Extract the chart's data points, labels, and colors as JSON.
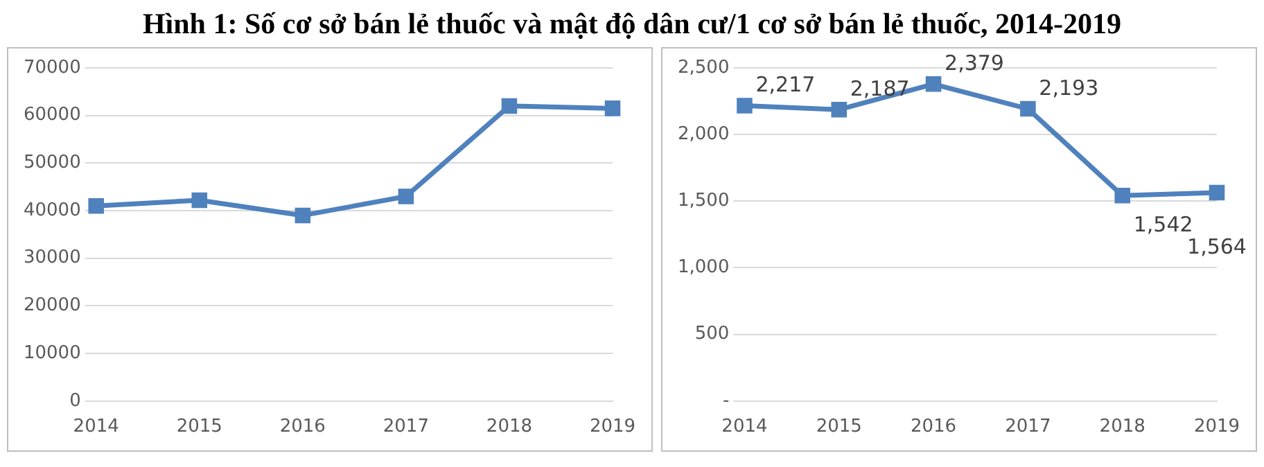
{
  "chart_data": [
    {
      "type": "line",
      "title": "Hình 1: Số cơ sở bán lẻ thuốc và mật độ dân cư/1 cơ sở bán lẻ thuốc, 2014-2019",
      "categories": [
        "2014",
        "2015",
        "2016",
        "2017",
        "2018",
        "2019"
      ],
      "series": [
        {
          "color": "#4f81bd",
          "values": [
            41000,
            42200,
            39000,
            43000,
            62000,
            61500
          ]
        }
      ],
      "ylim": [
        0,
        70000
      ],
      "yticks": [
        0,
        10000,
        20000,
        30000,
        40000,
        50000,
        60000,
        70000
      ],
      "grid": "y",
      "legend": false,
      "marker": "square"
    },
    {
      "type": "line",
      "categories": [
        "2014",
        "2015",
        "2016",
        "2017",
        "2018",
        "2019"
      ],
      "series": [
        {
          "color": "#4f81bd",
          "values": [
            2217,
            2187,
            2379,
            2193,
            1542,
            1564
          ],
          "value_labels": [
            "2,217",
            "2,187",
            "2,379",
            "2,193",
            "1,542",
            "1,564"
          ]
        }
      ],
      "ylim": [
        0,
        2500
      ],
      "yticks": [
        {
          "value": 0,
          "label": "-"
        },
        {
          "value": 500,
          "label": "500"
        },
        {
          "value": 1000,
          "label": "1,000"
        },
        {
          "value": 1500,
          "label": "1,500"
        },
        {
          "value": 2000,
          "label": "2,000"
        },
        {
          "value": 2500,
          "label": "2,500"
        }
      ],
      "grid": "y",
      "legend": false,
      "marker": "square"
    }
  ]
}
